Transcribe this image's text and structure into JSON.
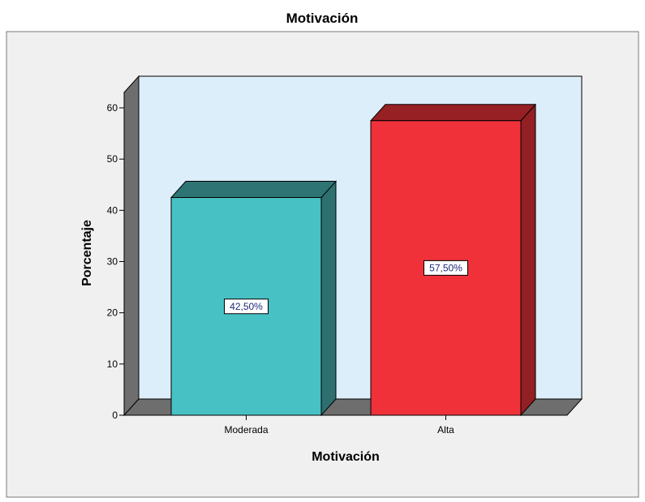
{
  "chart_data": {
    "type": "bar",
    "title": "Motivación",
    "xlabel": "Motivación",
    "ylabel": "Porcentaje",
    "categories": [
      "Moderada",
      "Alta"
    ],
    "values": [
      42.5,
      57.5
    ],
    "data_labels": [
      "42,50%",
      "57,50%"
    ],
    "ylim": [
      0,
      60
    ],
    "yticks": [
      0,
      10,
      20,
      30,
      40,
      50,
      60
    ],
    "grid": false,
    "style": "3d",
    "colors": {
      "bars": [
        {
          "front": "#48c1c4",
          "top": "#2e7474",
          "side": "#2e6f6f"
        },
        {
          "front": "#f0313a",
          "top": "#962024",
          "side": "#911f24"
        }
      ],
      "plot_background": "#ddeefb",
      "frame_background": "#f0f0f0",
      "floor": "#6e6e6e"
    }
  }
}
